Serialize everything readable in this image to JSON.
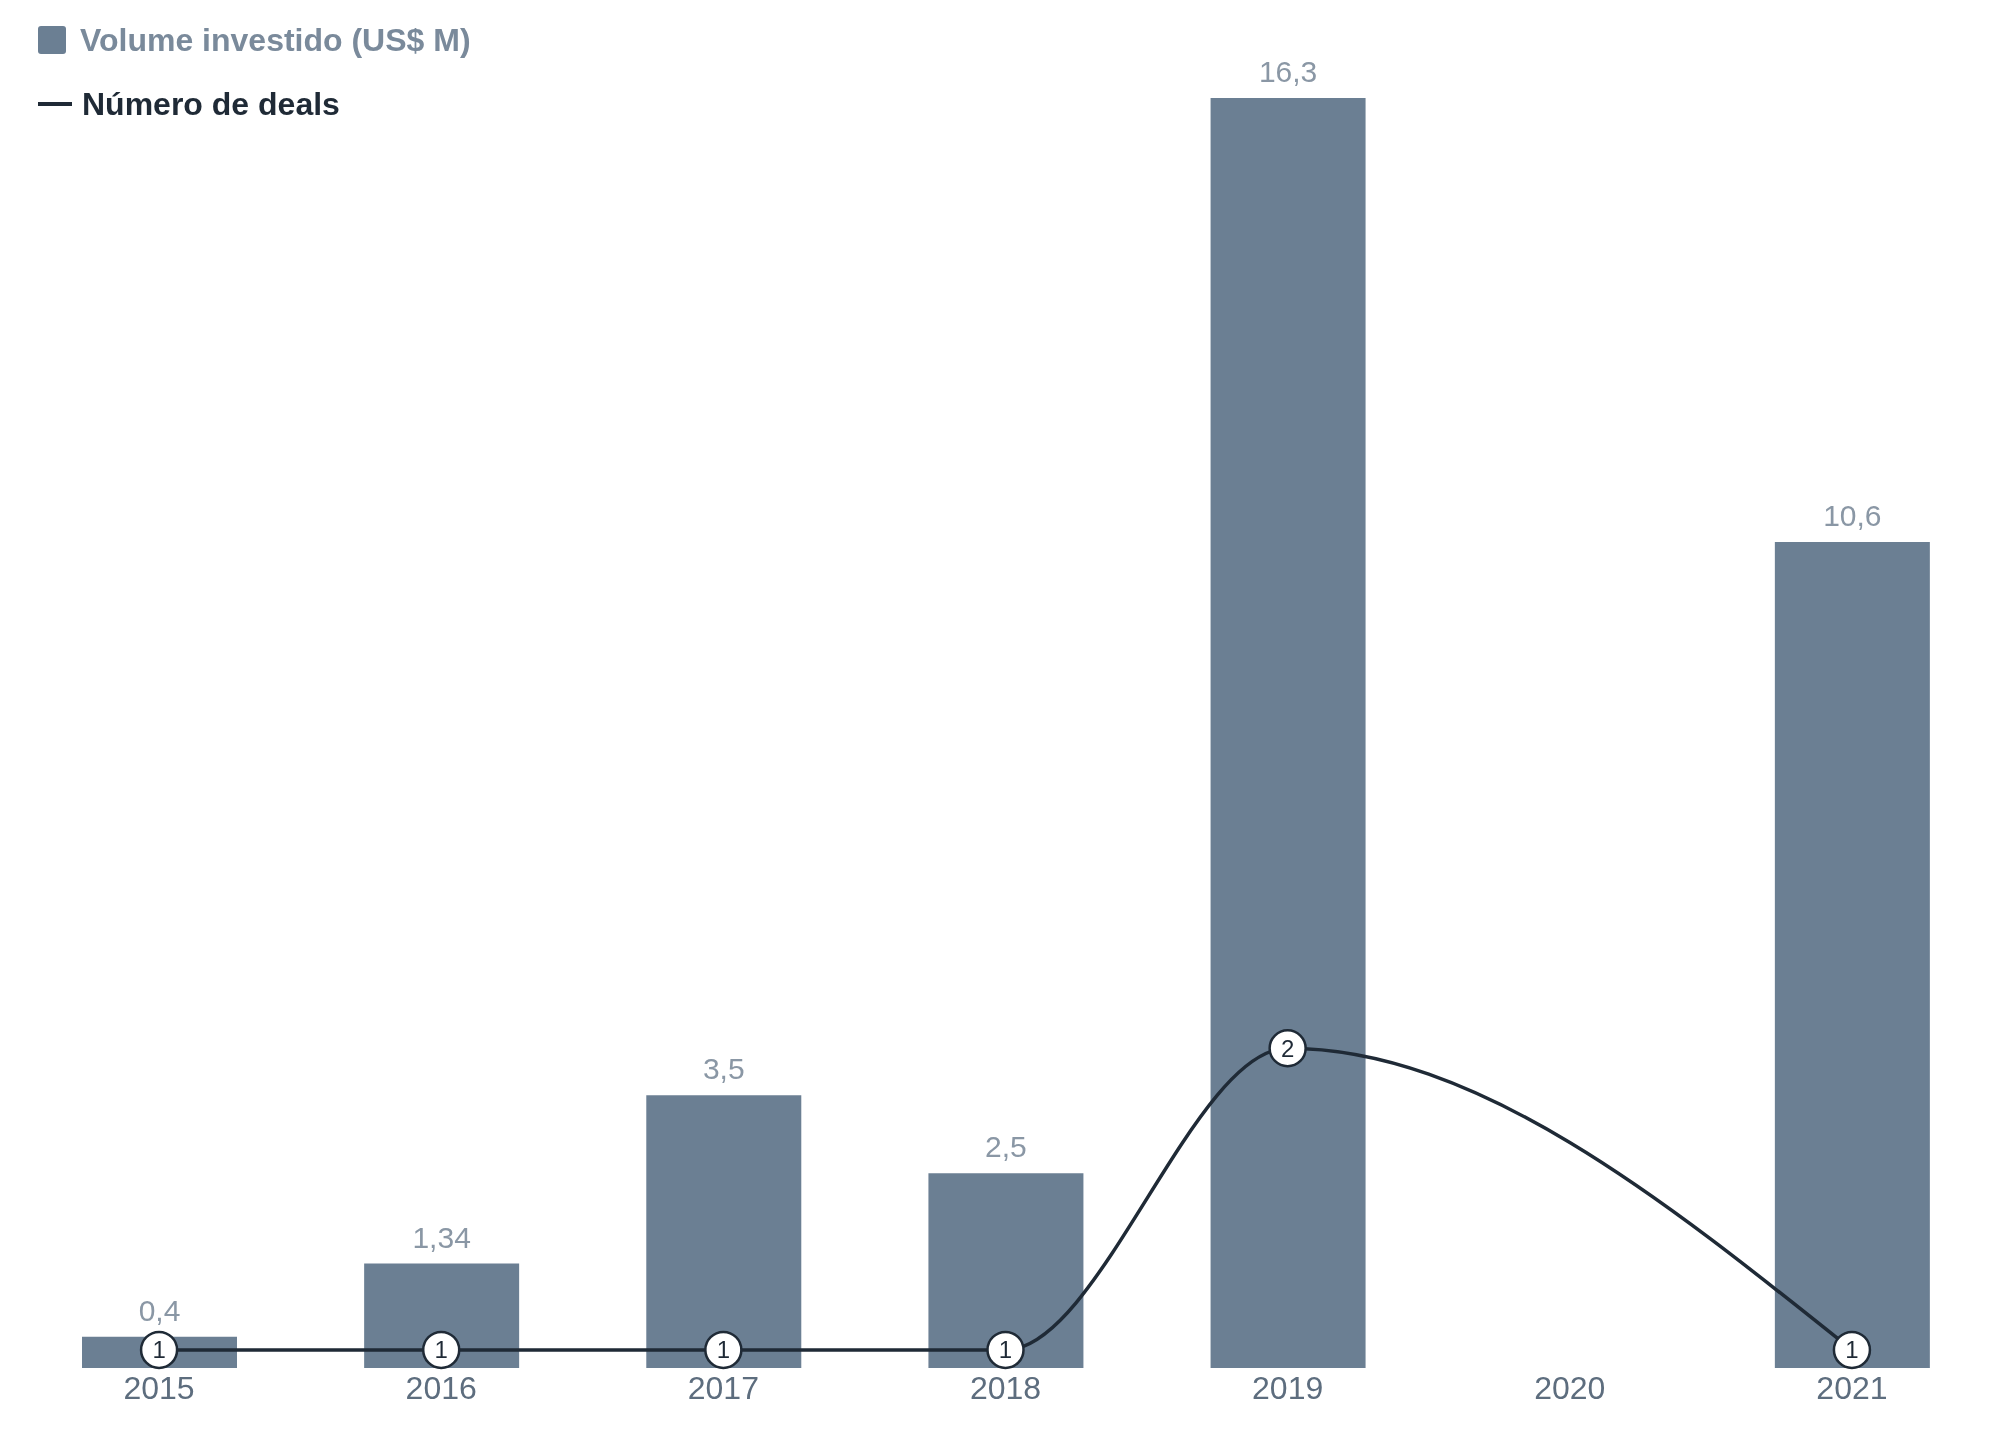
{
  "chart_data": {
    "type": "bar",
    "categories": [
      "2015",
      "2016",
      "2017",
      "2018",
      "2019",
      "2020",
      "2021"
    ],
    "series": [
      {
        "name": "Volume investido (US$ M)",
        "color": "#6b7f93",
        "values": [
          0.4,
          1.34,
          3.5,
          2.5,
          16.3,
          null,
          10.6
        ],
        "value_labels": [
          "0,4",
          "1,34",
          "3,5",
          "2,5",
          "16,3",
          null,
          "10,6"
        ]
      },
      {
        "name": "Número de deals",
        "type": "line",
        "axis": "y2",
        "color": "#1f2a36",
        "values": [
          1,
          1,
          1,
          1,
          2,
          null,
          1
        ],
        "value_labels": [
          "1",
          "1",
          "1",
          "1",
          "2",
          null,
          "1"
        ]
      }
    ],
    "tick_labels": "x",
    "legend": "top left",
    "marker": "circle",
    "line_style": "solid"
  }
}
